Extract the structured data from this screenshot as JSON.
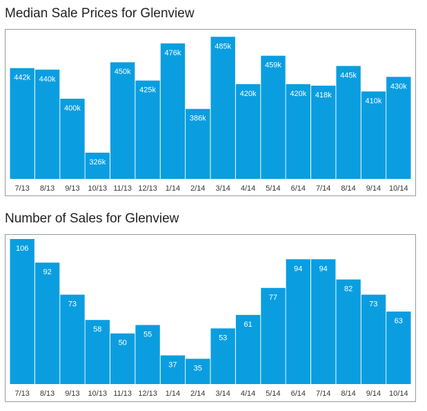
{
  "colors": {
    "bar": "#0a9ee0",
    "bar_label": "#ffffff",
    "tick_label": "#333333"
  },
  "chart_data": [
    {
      "type": "bar",
      "title": "Median Sale Prices for Glenview",
      "categories": [
        "7/13",
        "8/13",
        "9/13",
        "10/13",
        "11/13",
        "12/13",
        "1/14",
        "2/14",
        "3/14",
        "4/14",
        "5/14",
        "6/14",
        "7/14",
        "8/14",
        "9/14",
        "10/14"
      ],
      "values": [
        442,
        440,
        400,
        326,
        450,
        425,
        476,
        386,
        485,
        420,
        459,
        420,
        418,
        445,
        410,
        430
      ],
      "data_labels": [
        "442k",
        "440k",
        "400k",
        "326k",
        "450k",
        "425k",
        "476k",
        "386k",
        "485k",
        "420k",
        "459k",
        "420k",
        "418k",
        "445k",
        "410k",
        "430k"
      ],
      "ylim": [
        290,
        490
      ],
      "grid": false
    },
    {
      "type": "bar",
      "title": "Number of Sales for Glenview",
      "categories": [
        "7/13",
        "8/13",
        "9/13",
        "10/13",
        "11/13",
        "12/13",
        "1/14",
        "2/14",
        "3/14",
        "4/14",
        "5/14",
        "6/14",
        "7/14",
        "8/14",
        "9/14",
        "10/14"
      ],
      "values": [
        106,
        92,
        73,
        58,
        50,
        55,
        37,
        35,
        53,
        61,
        77,
        94,
        94,
        82,
        73,
        63
      ],
      "data_labels": [
        "106",
        "92",
        "73",
        "58",
        "50",
        "55",
        "37",
        "35",
        "53",
        "61",
        "77",
        "94",
        "94",
        "82",
        "73",
        "63"
      ],
      "ylim": [
        20,
        106
      ],
      "grid": false
    }
  ]
}
